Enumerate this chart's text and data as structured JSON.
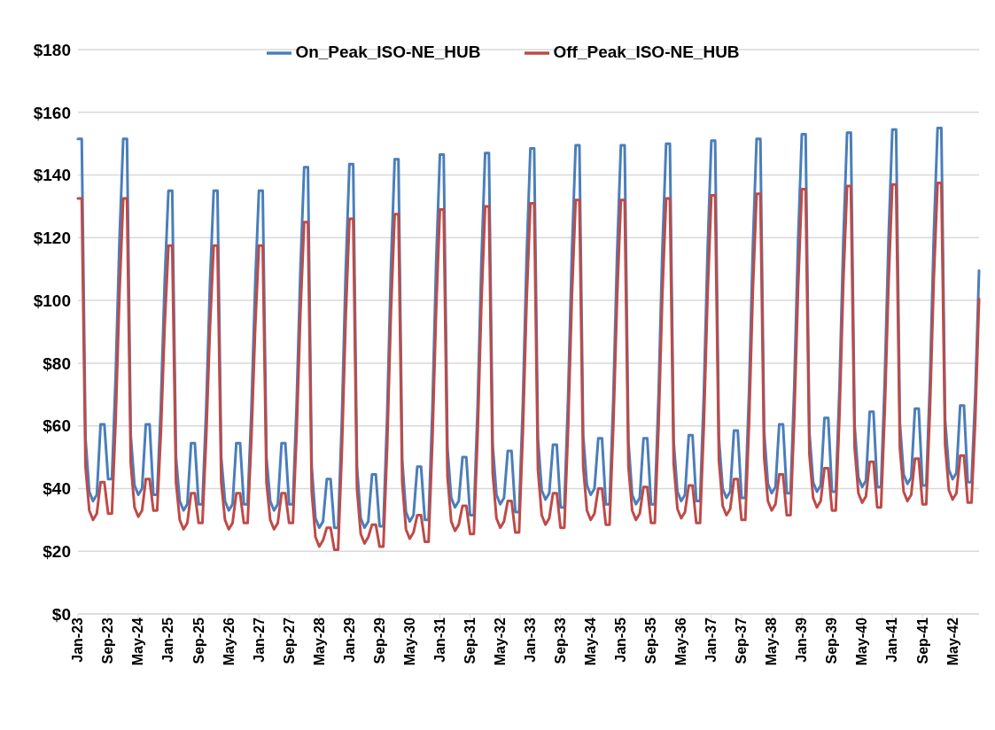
{
  "chart_data": {
    "type": "line",
    "categories": [
      "Jan-23",
      null,
      null,
      null,
      null,
      null,
      null,
      null,
      "Sep-23",
      null,
      null,
      null,
      null,
      null,
      null,
      null,
      "May-24",
      null,
      null,
      null,
      null,
      null,
      null,
      null,
      "Jan-25",
      null,
      null,
      null,
      null,
      null,
      null,
      null,
      "Sep-25",
      null,
      null,
      null,
      null,
      null,
      null,
      null,
      "May-26",
      null,
      null,
      null,
      null,
      null,
      null,
      null,
      "Jan-27",
      null,
      null,
      null,
      null,
      null,
      null,
      null,
      "Sep-27",
      null,
      null,
      null,
      null,
      null,
      null,
      null,
      "May-28",
      null,
      null,
      null,
      null,
      null,
      null,
      null,
      "Jan-29",
      null,
      null,
      null,
      null,
      null,
      null,
      null,
      "Sep-29",
      null,
      null,
      null,
      null,
      null,
      null,
      null,
      "May-30",
      null,
      null,
      null,
      null,
      null,
      null,
      null,
      "Jan-31",
      null,
      null,
      null,
      null,
      null,
      null,
      null,
      "Sep-31",
      null,
      null,
      null,
      null,
      null,
      null,
      null,
      "May-32",
      null,
      null,
      null,
      null,
      null,
      null,
      null,
      "Jan-33",
      null,
      null,
      null,
      null,
      null,
      null,
      null,
      "Sep-33",
      null,
      null,
      null,
      null,
      null,
      null,
      null,
      "May-34",
      null,
      null,
      null,
      null,
      null,
      null,
      null,
      "Jan-35",
      null,
      null,
      null,
      null,
      null,
      null,
      null,
      "Sep-35",
      null,
      null,
      null,
      null,
      null,
      null,
      null,
      "May-36",
      null,
      null,
      null,
      null,
      null,
      null,
      null,
      "Jan-37",
      null,
      null,
      null,
      null,
      null,
      null,
      null,
      "Sep-37",
      null,
      null,
      null,
      null,
      null,
      null,
      null,
      "May-38",
      null,
      null,
      null,
      null,
      null,
      null,
      null,
      "Jan-39",
      null,
      null,
      null,
      null,
      null,
      null,
      null,
      "Sep-39",
      null,
      null,
      null,
      null,
      null,
      null,
      null,
      "May-40",
      null,
      null,
      null,
      null,
      null,
      null,
      null,
      "Jan-41",
      null,
      null,
      null,
      null,
      null,
      null,
      null,
      "Sep-41",
      null,
      null,
      null,
      null,
      null,
      null,
      null,
      "May-42",
      null,
      null,
      null,
      null,
      null,
      null,
      null
    ],
    "series": [
      {
        "name": "On_Peak_ISO-NE_HUB",
        "color": "#4a7ebb",
        "values": [
          151.5,
          151.5,
          56,
          39,
          36,
          38,
          60.5,
          60.5,
          43,
          43,
          76,
          119,
          151.5,
          151.5,
          57,
          41,
          38,
          40,
          60.5,
          60.5,
          38,
          38,
          67,
          106,
          135,
          135,
          50,
          36,
          33,
          35,
          54.5,
          54.5,
          35,
          35,
          65,
          105,
          135,
          135,
          50,
          36,
          33,
          35,
          54.5,
          54.5,
          35,
          35,
          65,
          105,
          135,
          135,
          50,
          36,
          33,
          35,
          54.5,
          54.5,
          35,
          35,
          67,
          110,
          142.5,
          142.5,
          47,
          30.5,
          27.5,
          29.5,
          43,
          43,
          27.5,
          27.5,
          62,
          109,
          143.5,
          143.5,
          47,
          30.5,
          27.5,
          29.5,
          44.5,
          44.5,
          28,
          28,
          63,
          110,
          145,
          145,
          49,
          32.5,
          29.5,
          31.5,
          47,
          47,
          30,
          30,
          65,
          112,
          146.5,
          146.5,
          53,
          37,
          34,
          36,
          50,
          50,
          31.5,
          31.5,
          66,
          112,
          147,
          147,
          54,
          38,
          35,
          37,
          52,
          52,
          32.5,
          32.5,
          67,
          114,
          148.5,
          148.5,
          56,
          39.5,
          36.5,
          38.5,
          54,
          54,
          34,
          34,
          69,
          115,
          149.5,
          149.5,
          57,
          41,
          38,
          40,
          56,
          56,
          35,
          35,
          69,
          115,
          149.5,
          149.5,
          55,
          38,
          35,
          37,
          56,
          56,
          35,
          35,
          70,
          116,
          150,
          150,
          55,
          39,
          36,
          38,
          57,
          57,
          36,
          36,
          70,
          116,
          151,
          151,
          56,
          40,
          37,
          39,
          58.5,
          58.5,
          37,
          37,
          71,
          117,
          151.5,
          151.5,
          58,
          41.5,
          38.5,
          40.5,
          60.5,
          60.5,
          38.5,
          38.5,
          73,
          119,
          153,
          153,
          58,
          42,
          39,
          41,
          62.5,
          62.5,
          39,
          39,
          73,
          119,
          153.5,
          153.5,
          60,
          43.5,
          40.5,
          42.5,
          64.5,
          64.5,
          40.5,
          40.5,
          75,
          120,
          154.5,
          154.5,
          61,
          44.5,
          41.5,
          43.5,
          65.5,
          65.5,
          41,
          41,
          75,
          121,
          155,
          155,
          62,
          46,
          43,
          45,
          66.5,
          66.5,
          42,
          42,
          70,
          109.5
        ]
      },
      {
        "name": "Off_Peak_ISO-NE_HUB",
        "color": "#be4b48",
        "values": [
          132.5,
          132.5,
          47,
          33,
          30,
          32,
          42,
          42,
          32,
          32,
          62,
          102,
          132.5,
          132.5,
          48,
          34,
          31,
          33,
          43,
          43,
          33,
          33,
          58,
          92,
          117.5,
          117.5,
          42,
          30,
          27,
          29,
          38.5,
          38.5,
          29,
          29,
          56,
          91,
          117.5,
          117.5,
          42,
          30,
          27,
          29,
          38.5,
          38.5,
          29,
          29,
          56,
          91,
          117.5,
          117.5,
          42,
          30,
          27,
          29,
          38.5,
          38.5,
          29,
          29,
          58,
          96,
          125,
          125,
          39,
          24.5,
          21.5,
          23.5,
          27.5,
          27.5,
          20.5,
          20.5,
          52,
          94,
          126,
          126,
          40,
          25.5,
          22.5,
          24.5,
          28.5,
          28.5,
          21.5,
          21.5,
          53,
          96,
          127.5,
          127.5,
          42,
          27,
          24,
          26,
          31.5,
          31.5,
          23,
          23,
          55,
          97,
          129,
          129,
          44,
          29.5,
          26.5,
          28.5,
          34.5,
          34.5,
          25.5,
          25.5,
          57,
          99,
          130,
          130,
          45,
          30.5,
          27.5,
          29.5,
          36,
          36,
          26,
          26,
          58,
          100,
          131,
          131,
          46,
          31.5,
          28.5,
          30.5,
          38.5,
          38.5,
          27.5,
          27.5,
          59,
          101,
          132,
          132,
          47,
          33,
          30,
          32,
          40,
          40,
          28.5,
          28.5,
          60,
          101,
          132,
          132,
          47,
          33,
          30,
          32,
          40.5,
          40.5,
          29,
          29,
          60,
          102,
          132.5,
          132.5,
          48,
          33.5,
          30.5,
          32.5,
          41,
          41,
          29,
          29,
          60,
          102,
          133.5,
          133.5,
          49,
          34.5,
          31.5,
          33.5,
          43,
          43,
          30,
          30,
          61,
          103,
          134,
          134,
          50,
          36,
          33,
          35,
          44.5,
          44.5,
          31.5,
          31.5,
          63,
          104,
          135.5,
          135.5,
          51,
          37,
          34,
          36,
          46.5,
          46.5,
          33,
          33,
          64,
          106,
          136.5,
          136.5,
          53,
          38.5,
          35.5,
          37.5,
          48.5,
          48.5,
          34,
          34,
          65,
          106,
          137,
          137,
          53,
          39,
          36,
          38,
          49.5,
          49.5,
          35,
          35,
          66,
          107,
          137.5,
          137.5,
          54,
          39.5,
          36.5,
          38.5,
          50.5,
          50.5,
          35.5,
          35.5,
          62,
          100.5
        ]
      }
    ],
    "ylim": [
      0,
      180
    ],
    "yticks": [
      {
        "value": 0,
        "label": "$0"
      },
      {
        "value": 20,
        "label": "$20"
      },
      {
        "value": 40,
        "label": "$40"
      },
      {
        "value": 60,
        "label": "$60"
      },
      {
        "value": 80,
        "label": "$80"
      },
      {
        "value": 100,
        "label": "$100"
      },
      {
        "value": 120,
        "label": "$120"
      },
      {
        "value": 140,
        "label": "$140"
      },
      {
        "value": 160,
        "label": "$160"
      },
      {
        "value": 180,
        "label": "$180"
      }
    ],
    "grid": "y",
    "legend": "top",
    "marker": "none",
    "line_style": "solid"
  }
}
